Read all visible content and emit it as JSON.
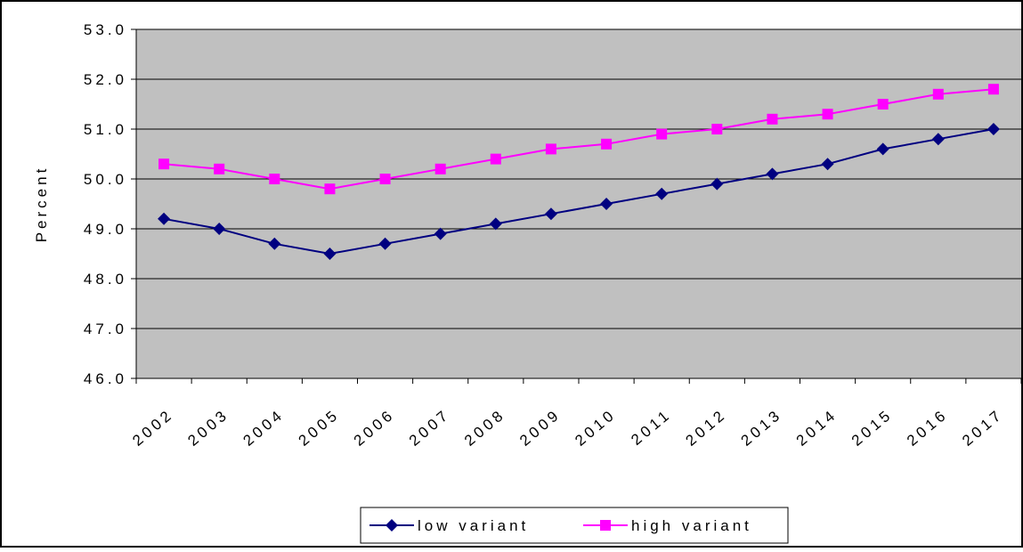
{
  "chart_data": {
    "type": "line",
    "y_label": "Percent",
    "categories": [
      "2002",
      "2003",
      "2004",
      "2005",
      "2006",
      "2007",
      "2008",
      "2009",
      "2010",
      "2011",
      "2012",
      "2013",
      "2014",
      "2015",
      "2016",
      "2017"
    ],
    "series": [
      {
        "name": "low variant",
        "color": "#000080",
        "marker": "diamond",
        "values": [
          49.2,
          49.0,
          48.7,
          48.5,
          48.7,
          48.9,
          49.1,
          49.3,
          49.5,
          49.7,
          49.9,
          50.1,
          50.3,
          50.6,
          50.8,
          51.0
        ]
      },
      {
        "name": "high variant",
        "color": "#ff00ff",
        "marker": "square",
        "values": [
          50.3,
          50.2,
          50.0,
          49.8,
          50.0,
          50.2,
          50.4,
          50.6,
          50.7,
          50.9,
          51.0,
          51.2,
          51.3,
          51.5,
          51.7,
          51.8
        ]
      }
    ],
    "ylim": [
      46,
      53
    ],
    "yticks": [
      {
        "value": 46,
        "label": "46.0"
      },
      {
        "value": 47,
        "label": "47.0"
      },
      {
        "value": 48,
        "label": "48.0"
      },
      {
        "value": 49,
        "label": "49.0"
      },
      {
        "value": 50,
        "label": "50.0"
      },
      {
        "value": 51,
        "label": "51.0"
      },
      {
        "value": 52,
        "label": "52.0"
      },
      {
        "value": 53,
        "label": "53.0"
      }
    ],
    "grid": true,
    "plot_background": "#c0c0c0",
    "legend": "bottom"
  }
}
